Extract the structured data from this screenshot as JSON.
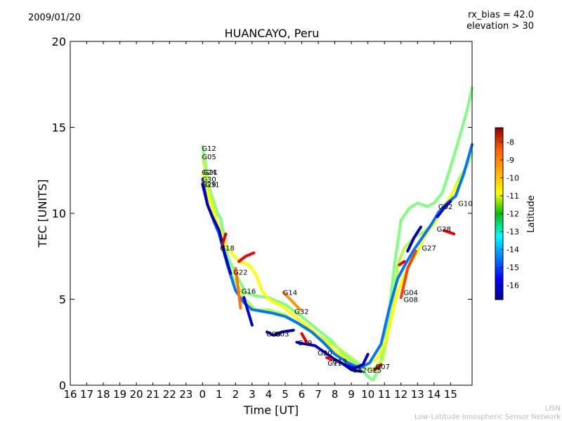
{
  "header": {
    "date": "2009/01/20",
    "title": "HUANCAYO, Peru",
    "rx_bias": "rx_bias = 42.0",
    "elevation": "elevation > 30"
  },
  "footer": {
    "line1": "LISN",
    "line2": "Low-Latitude Ionospheric Sensor Network"
  },
  "chart_data": {
    "type": "scatter",
    "title": "HUANCAYO, Peru",
    "xlabel": "Time [UT]",
    "ylabel": "TEC [UNITS]",
    "x_tick_labels": [
      "16",
      "17",
      "18",
      "19",
      "20",
      "21",
      "22",
      "23",
      "0",
      "1",
      "2",
      "3",
      "4",
      "5",
      "6",
      "7",
      "8",
      "9",
      "10",
      "11",
      "12",
      "13",
      "14",
      "15"
    ],
    "ylim": [
      0,
      20
    ],
    "y_ticks": [
      0,
      5,
      10,
      15,
      20
    ],
    "colorbar": {
      "label": "Latitude",
      "range": [
        -16.8,
        -7.2
      ],
      "ticks": [
        -8,
        -9,
        -10,
        -11,
        -12,
        -13,
        -14,
        -15,
        -16
      ]
    },
    "satellite_labels": [
      {
        "name": "G12",
        "x": 0.0,
        "y": 13.8
      },
      {
        "name": "G05",
        "x": 0.0,
        "y": 13.3
      },
      {
        "name": "G24",
        "x": 0.0,
        "y": 12.4
      },
      {
        "name": "G21",
        "x": 0.1,
        "y": 12.4
      },
      {
        "name": "G30",
        "x": 0.0,
        "y": 12.0
      },
      {
        "name": "G31",
        "x": 0.2,
        "y": 11.7
      },
      {
        "name": "G29",
        "x": 0.0,
        "y": 11.7
      },
      {
        "name": "G18",
        "x": 1.1,
        "y": 8.0
      },
      {
        "name": "G22",
        "x": 1.9,
        "y": 6.6
      },
      {
        "name": "G16",
        "x": 2.4,
        "y": 5.5
      },
      {
        "name": "G14",
        "x": 4.9,
        "y": 5.4
      },
      {
        "name": "G32",
        "x": 5.6,
        "y": 4.3
      },
      {
        "name": "G06",
        "x": 3.9,
        "y": 3.0
      },
      {
        "name": "G03",
        "x": 4.4,
        "y": 3.0
      },
      {
        "name": "G19",
        "x": 5.8,
        "y": 2.5
      },
      {
        "name": "G20",
        "x": 7.0,
        "y": 1.9
      },
      {
        "name": "G11",
        "x": 7.6,
        "y": 1.3
      },
      {
        "name": "G13",
        "x": 7.9,
        "y": 1.4
      },
      {
        "name": "G12",
        "x": 9.1,
        "y": 0.9
      },
      {
        "name": "G25",
        "x": 10.0,
        "y": 0.9
      },
      {
        "name": "G07",
        "x": 10.5,
        "y": 1.1
      },
      {
        "name": "G04",
        "x": 12.2,
        "y": 5.4
      },
      {
        "name": "G08",
        "x": 12.2,
        "y": 5.0
      },
      {
        "name": "G27",
        "x": 13.3,
        "y": 8.0
      },
      {
        "name": "G28",
        "x": 14.2,
        "y": 9.1
      },
      {
        "name": "G02",
        "x": 14.3,
        "y": 10.4
      },
      {
        "name": "G10",
        "x": 15.5,
        "y": 10.6
      }
    ],
    "series": [
      {
        "lat": -12.0,
        "points": [
          [
            0,
            13.9
          ],
          [
            0.4,
            11.5
          ],
          [
            0.9,
            10.0
          ],
          [
            1.1,
            9.7
          ],
          [
            1.5,
            7.5
          ],
          [
            2.0,
            6.5
          ],
          [
            2.6,
            5.4
          ],
          [
            3.2,
            5.2
          ],
          [
            4.0,
            5.1
          ],
          [
            5.0,
            4.7
          ],
          [
            6.0,
            4.0
          ],
          [
            7.0,
            3.2
          ],
          [
            7.8,
            2.6
          ],
          [
            8.5,
            1.8
          ],
          [
            9.3,
            1.2
          ],
          [
            10.0,
            0.5
          ],
          [
            10.3,
            0.3
          ],
          [
            10.7,
            1.0
          ],
          [
            11.2,
            3.5
          ],
          [
            11.6,
            7.0
          ],
          [
            12.0,
            9.6
          ],
          [
            12.5,
            10.3
          ],
          [
            13.0,
            10.6
          ],
          [
            13.6,
            10.4
          ],
          [
            14.0,
            10.6
          ],
          [
            14.5,
            11.2
          ],
          [
            15.0,
            12.7
          ],
          [
            15.5,
            14.3
          ],
          [
            16.0,
            16.0
          ],
          [
            16.3,
            17.3
          ]
        ]
      },
      {
        "lat": -11.5,
        "points": [
          [
            0,
            13.3
          ],
          [
            0.5,
            11.0
          ],
          [
            1.0,
            9.0
          ],
          [
            1.5,
            7.0
          ],
          [
            2.0,
            6.0
          ],
          [
            2.6,
            5.0
          ],
          [
            3.2,
            4.4
          ],
          [
            4.0,
            4.4
          ],
          [
            5.0,
            4.1
          ],
          [
            6.0,
            3.4
          ],
          [
            7.0,
            2.9
          ],
          [
            8.0,
            2.3
          ],
          [
            9.0,
            1.6
          ],
          [
            9.8,
            1.0
          ],
          [
            10.3,
            0.9
          ],
          [
            10.9,
            1.5
          ],
          [
            11.4,
            4.0
          ],
          [
            11.8,
            7.0
          ],
          [
            12.2,
            8.0
          ],
          [
            12.8,
            8.6
          ],
          [
            13.5,
            9.0
          ],
          [
            14.0,
            9.5
          ],
          [
            14.5,
            10.3
          ],
          [
            15.0,
            10.9
          ],
          [
            15.5,
            12.0
          ],
          [
            16.0,
            12.8
          ],
          [
            16.3,
            13.5
          ]
        ]
      },
      {
        "lat": -10.8,
        "points": [
          [
            0,
            12.4
          ],
          [
            0.4,
            10.8
          ],
          [
            1.0,
            9.2
          ],
          [
            1.5,
            8.0
          ],
          [
            2.2,
            7.2
          ],
          [
            2.8,
            7.0
          ],
          [
            3.2,
            6.5
          ],
          [
            3.6,
            5.5
          ],
          [
            4.0,
            5.0
          ],
          [
            4.8,
            4.6
          ],
          [
            5.6,
            4.0
          ],
          [
            6.4,
            3.4
          ],
          [
            7.2,
            2.7
          ],
          [
            8.0,
            2.0
          ],
          [
            8.8,
            1.4
          ],
          [
            9.4,
            1.0
          ],
          [
            10.0,
            1.2
          ],
          [
            10.6,
            1.6
          ],
          [
            11.2,
            3.0
          ],
          [
            11.8,
            5.5
          ],
          [
            12.4,
            6.8
          ],
          [
            13.0,
            7.8
          ],
          [
            13.5,
            8.8
          ],
          [
            14.0,
            9.4
          ],
          [
            14.5,
            10.2
          ],
          [
            15.0,
            11.0
          ],
          [
            15.5,
            11.8
          ]
        ]
      },
      {
        "lat": -14.5,
        "points": [
          [
            0,
            12.0
          ],
          [
            0.3,
            10.5
          ],
          [
            0.7,
            9.5
          ],
          [
            1.0,
            8.8
          ],
          [
            1.5,
            7.0
          ],
          [
            2.0,
            5.5
          ],
          [
            2.5,
            4.8
          ],
          [
            3.0,
            4.4
          ],
          [
            3.6,
            4.3
          ],
          [
            4.2,
            4.2
          ],
          [
            5.0,
            4.0
          ],
          [
            5.8,
            3.6
          ],
          [
            6.6,
            3.1
          ],
          [
            7.3,
            2.5
          ],
          [
            8.0,
            1.8
          ],
          [
            8.8,
            1.3
          ],
          [
            9.5,
            1.0
          ],
          [
            10.1,
            1.3
          ],
          [
            10.8,
            2.4
          ],
          [
            11.3,
            4.5
          ],
          [
            11.8,
            6.2
          ],
          [
            12.3,
            7.1
          ],
          [
            12.8,
            7.9
          ],
          [
            13.3,
            8.6
          ],
          [
            13.8,
            9.3
          ],
          [
            14.3,
            10.1
          ],
          [
            14.8,
            10.6
          ],
          [
            15.3,
            11.0
          ],
          [
            15.8,
            12.3
          ],
          [
            16.3,
            14.0
          ]
        ]
      },
      {
        "lat": -16.2,
        "points": [
          [
            0,
            11.7
          ],
          [
            0.3,
            10.5
          ],
          [
            0.6,
            9.8
          ],
          [
            1.0,
            9.0
          ],
          [
            1.3,
            7.8
          ],
          [
            1.7,
            6.5
          ]
        ]
      },
      {
        "lat": -16.0,
        "points": [
          [
            2.5,
            5.1
          ],
          [
            3.0,
            3.5
          ]
        ]
      },
      {
        "lat": -16.3,
        "points": [
          [
            3.9,
            3.1
          ],
          [
            4.3,
            2.9
          ],
          [
            4.8,
            3.1
          ],
          [
            5.5,
            3.2
          ]
        ]
      },
      {
        "lat": -16.1,
        "points": [
          [
            5.7,
            2.5
          ],
          [
            6.2,
            2.4
          ],
          [
            6.8,
            2.3
          ],
          [
            7.4,
            1.9
          ],
          [
            8.0,
            1.5
          ],
          [
            8.6,
            1.2
          ],
          [
            9.2,
            1.0
          ],
          [
            9.7,
            1.2
          ],
          [
            10.0,
            1.8
          ]
        ]
      },
      {
        "lat": -16.3,
        "points": [
          [
            7.8,
            1.6
          ],
          [
            8.4,
            1.3
          ],
          [
            9.0,
            0.9
          ],
          [
            9.6,
            0.8
          ]
        ]
      },
      {
        "lat": -16.2,
        "points": [
          [
            12.4,
            7.8
          ],
          [
            12.8,
            8.6
          ],
          [
            13.2,
            9.2
          ]
        ]
      },
      {
        "lat": -16.0,
        "points": [
          [
            14.2,
            9.8
          ],
          [
            14.6,
            10.3
          ],
          [
            15.0,
            10.7
          ]
        ]
      },
      {
        "lat": -8.0,
        "points": [
          [
            1.2,
            8.2
          ],
          [
            1.4,
            8.8
          ]
        ]
      },
      {
        "lat": -8.3,
        "points": [
          [
            2.2,
            7.2
          ],
          [
            2.6,
            7.5
          ],
          [
            3.1,
            7.7
          ]
        ]
      },
      {
        "lat": -9.5,
        "points": [
          [
            2.0,
            6.8
          ],
          [
            2.3,
            4.5
          ]
        ]
      },
      {
        "lat": -8.2,
        "points": [
          [
            6.0,
            3.0
          ],
          [
            6.3,
            2.5
          ]
        ]
      },
      {
        "lat": -8.4,
        "points": [
          [
            7.5,
            1.6
          ],
          [
            7.8,
            1.5
          ]
        ]
      },
      {
        "lat": -8.0,
        "points": [
          [
            10.4,
            0.9
          ],
          [
            10.8,
            1.2
          ]
        ]
      },
      {
        "lat": -8.3,
        "points": [
          [
            11.9,
            7.0
          ],
          [
            12.2,
            7.2
          ]
        ]
      },
      {
        "lat": -9.0,
        "points": [
          [
            12.0,
            5.1
          ],
          [
            12.4,
            6.8
          ],
          [
            12.9,
            7.8
          ]
        ]
      },
      {
        "lat": -8.1,
        "points": [
          [
            14.6,
            9.0
          ],
          [
            15.2,
            8.8
          ]
        ]
      },
      {
        "lat": -9.8,
        "points": [
          [
            4.9,
            5.4
          ],
          [
            5.4,
            4.9
          ],
          [
            5.9,
            4.4
          ]
        ]
      }
    ]
  }
}
